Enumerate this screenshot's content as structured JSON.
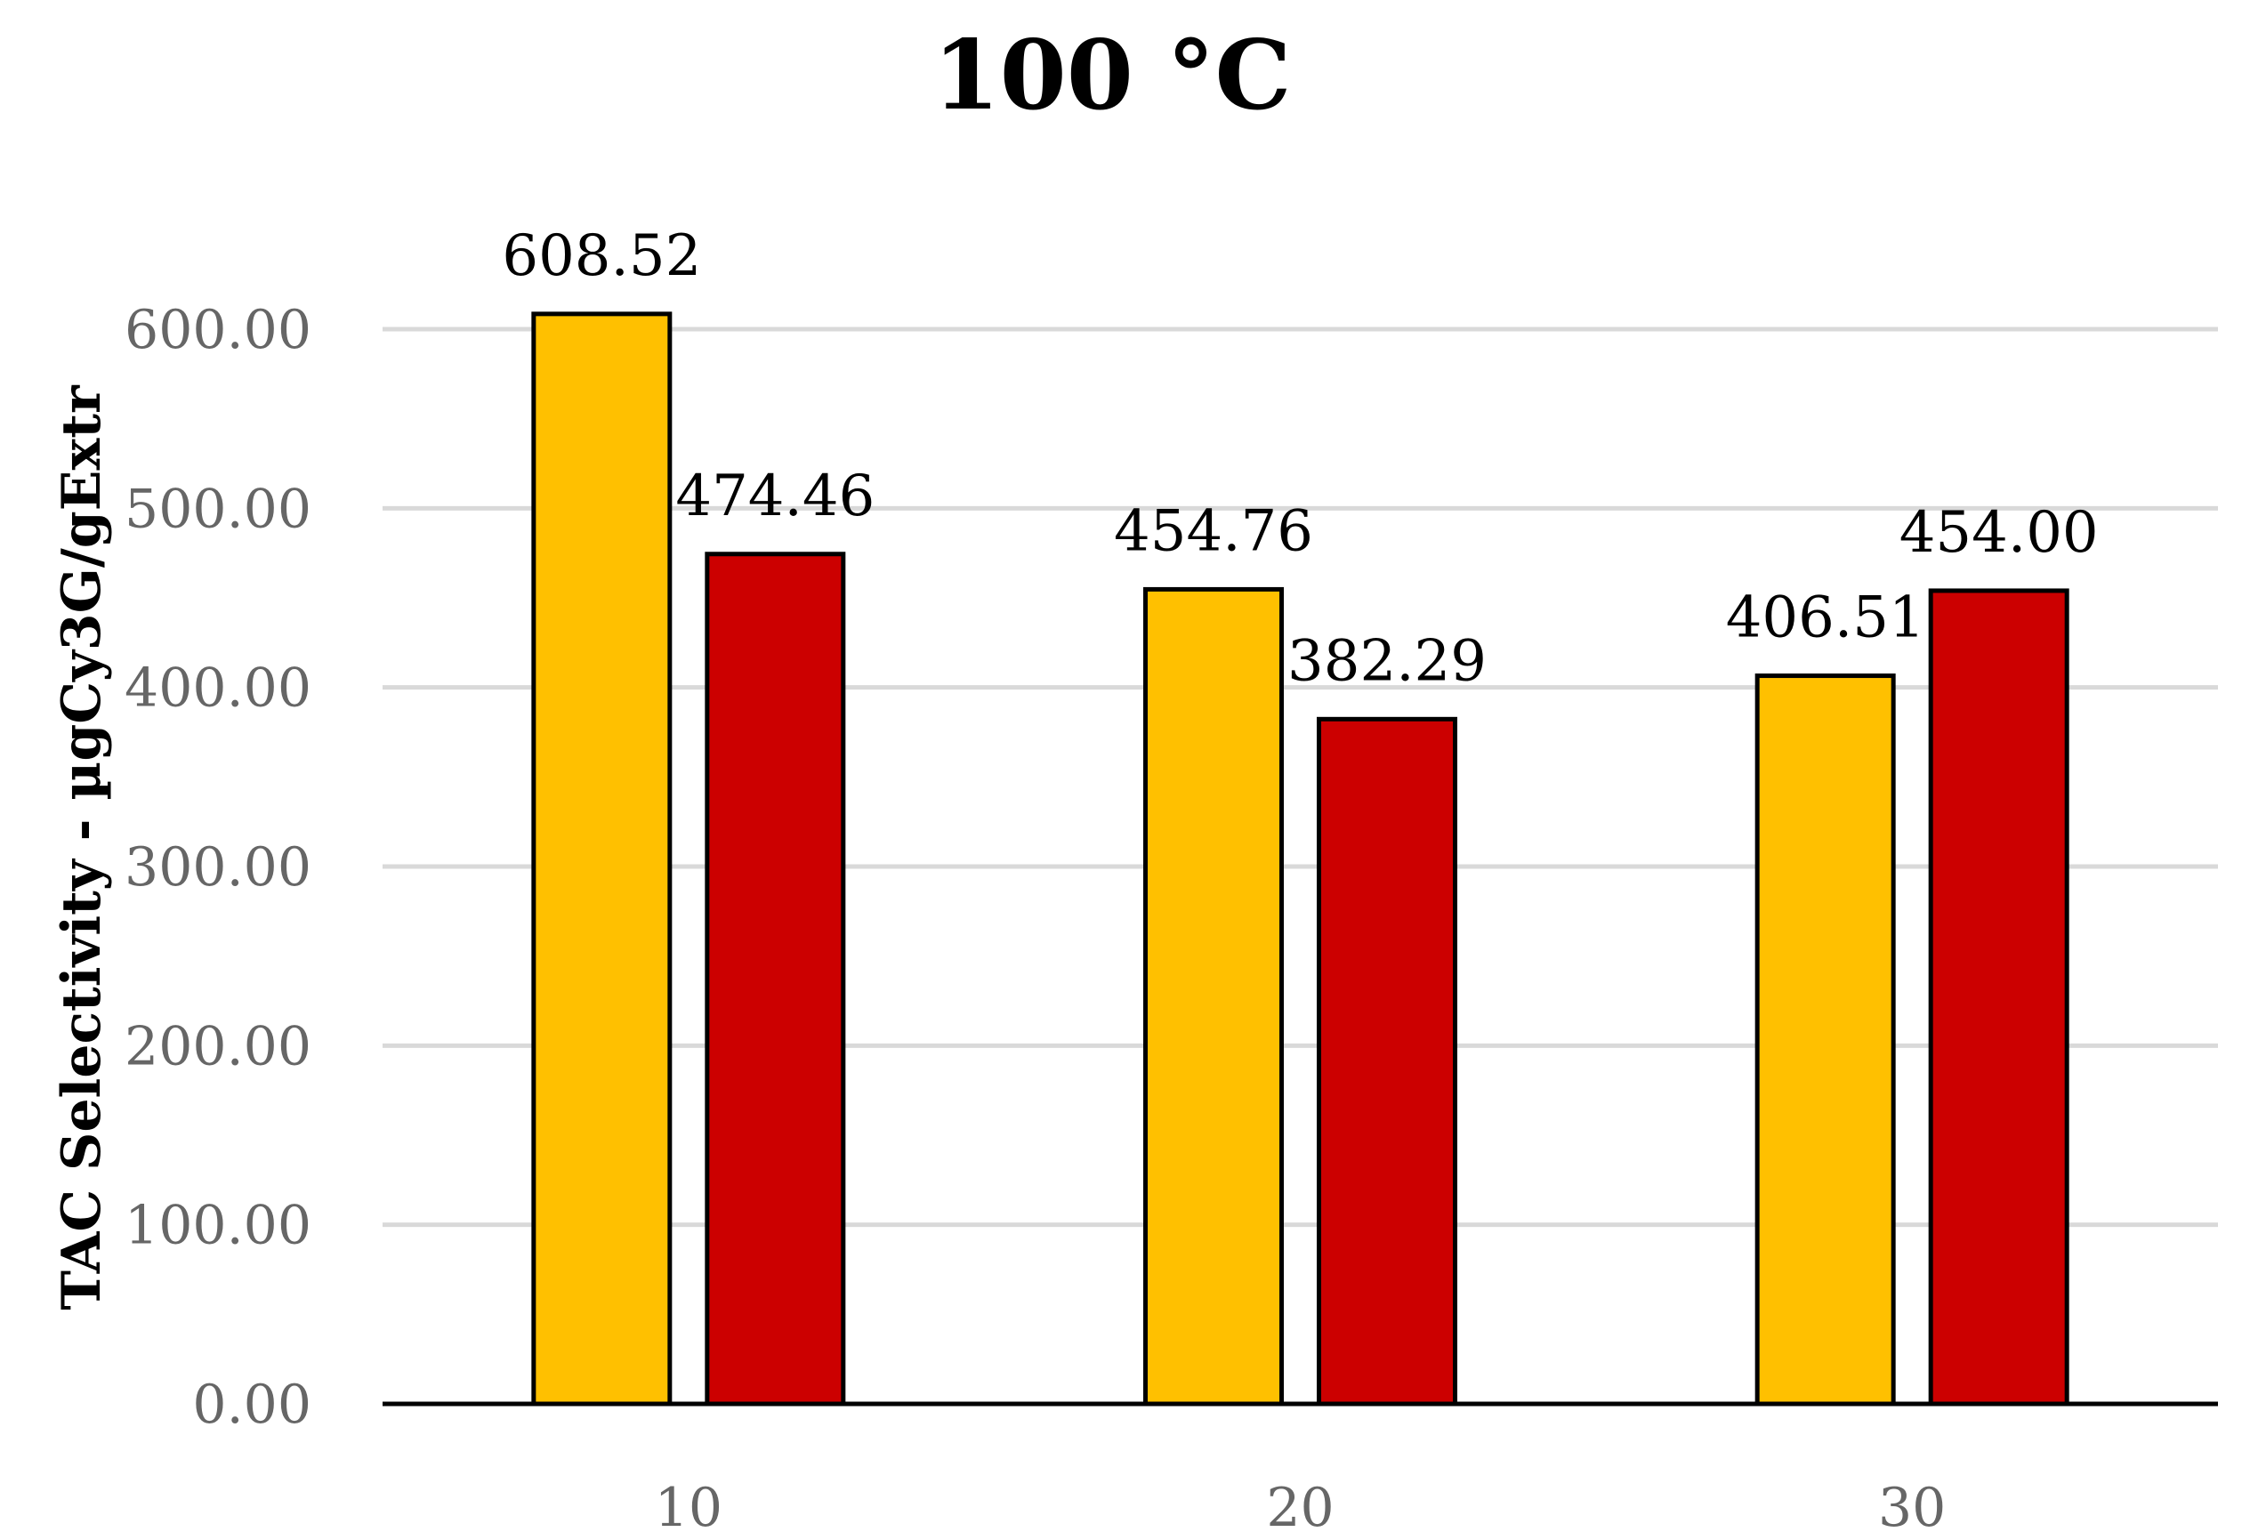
{
  "chart_data": {
    "type": "bar",
    "title": "100 °C",
    "xlabel": "",
    "ylabel": "TAC Selectivity - µgCy3G/gExtr",
    "categories": [
      "10",
      "20",
      "30"
    ],
    "series": [
      {
        "values": [
          608.52,
          454.76,
          406.51
        ],
        "color": "#FFC000"
      },
      {
        "values": [
          474.46,
          382.29,
          454.0
        ],
        "color": "#CC0000"
      }
    ],
    "data_labels": [
      [
        "608.52",
        "454.76",
        "406.51"
      ],
      [
        "474.46",
        "382.29",
        "454.00"
      ]
    ],
    "yticks": [
      "0.00",
      "100.00",
      "200.00",
      "300.00",
      "400.00",
      "500.00",
      "600.00"
    ],
    "ylim": [
      0,
      600
    ],
    "grid": true,
    "legend": "none"
  }
}
